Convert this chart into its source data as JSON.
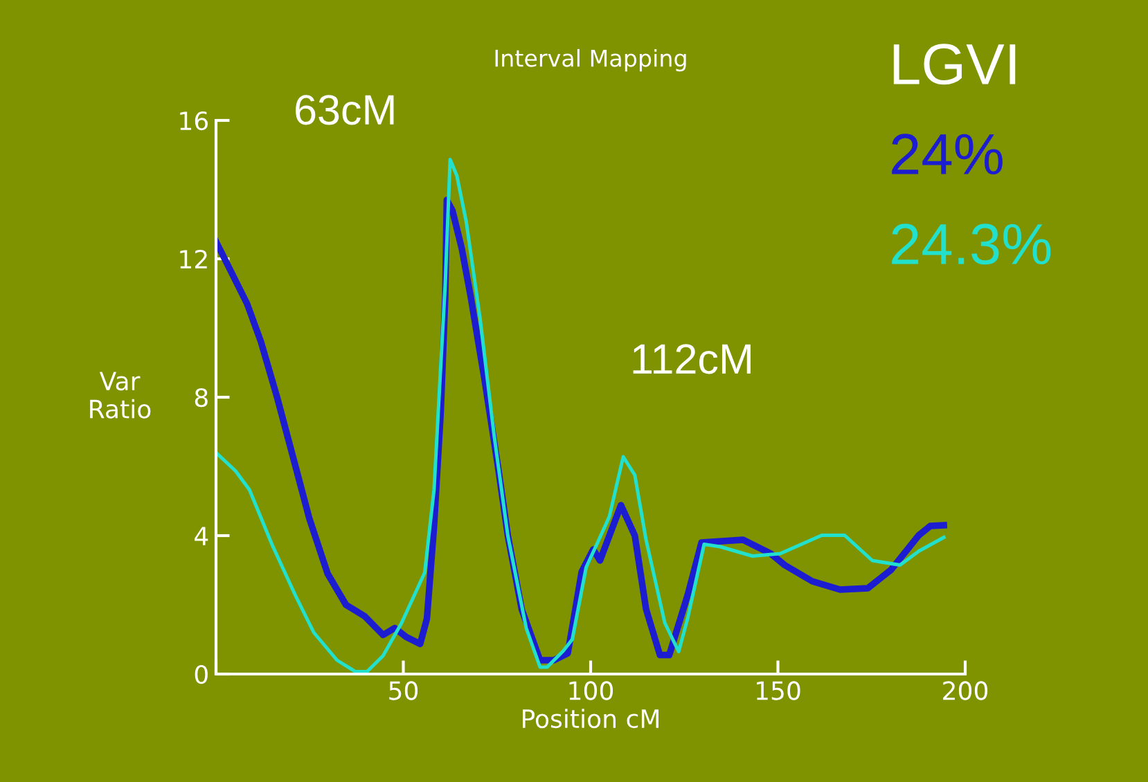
{
  "chart_data": {
    "type": "line",
    "title": "Interval Mapping",
    "xlabel": "Position cM",
    "ylabel": "Var\nRatio",
    "legend_title": "LGVI",
    "legend": "top right",
    "annotations": [
      "63cM",
      "112cM"
    ],
    "xlim": [
      0,
      200
    ],
    "xticks": [
      {
        "value": 0,
        "label": null
      },
      50,
      100,
      150,
      200
    ],
    "ylim": [
      0,
      16
    ],
    "yticks": [
      0,
      4,
      8,
      12,
      16
    ],
    "grid": false,
    "series": [
      {
        "name": "24%",
        "color": "#1c1cd0",
        "x": [
          0,
          8.3,
          12,
          16.3,
          20,
          24.9,
          29.8,
          34.7,
          39.7,
          44.6,
          47.7,
          50.8,
          54.5,
          56.3,
          58.2,
          60,
          61.2,
          61.6,
          63.1,
          65.6,
          68,
          71.7,
          75.4,
          77.9,
          81.6,
          86.5,
          90.2,
          93.9,
          95.7,
          97.6,
          100.7,
          102.5,
          108.1,
          111.8,
          114.8,
          118.5,
          121,
          125.9,
          129.6,
          140.7,
          148.1,
          151.8,
          159.2,
          166.6,
          174,
          180.2,
          187.6,
          190.7,
          194.3
        ],
        "values": [
          12.5,
          10.7,
          9.6,
          8.0,
          6.5,
          4.5,
          2.9,
          2.0,
          1.67,
          1.13,
          1.33,
          1.07,
          0.87,
          1.6,
          4.27,
          7.6,
          10.9,
          13.7,
          13.4,
          12.3,
          10.9,
          8.5,
          5.9,
          4.0,
          1.87,
          0.4,
          0.4,
          0.6,
          1.73,
          2.95,
          3.6,
          3.28,
          4.88,
          4.0,
          1.88,
          0.55,
          0.55,
          2.28,
          3.8,
          3.88,
          3.48,
          3.15,
          2.68,
          2.44,
          2.48,
          3.01,
          4.01,
          4.28,
          4.3
        ]
      },
      {
        "name": "24.3%",
        "color": "#22e0cc",
        "x": [
          0,
          5.2,
          8.9,
          15,
          21.2,
          26.1,
          32.3,
          37.2,
          40.3,
          44.6,
          49.5,
          55.7,
          58.2,
          60,
          61.2,
          62.5,
          64.3,
          66.8,
          70.5,
          74.2,
          77.9,
          82.8,
          86.5,
          88.4,
          92.7,
          95.1,
          98.8,
          101.9,
          105,
          108.7,
          111.8,
          114.8,
          119.8,
          123.5,
          125.9,
          130.3,
          134.6,
          143.2,
          150.6,
          161.7,
          167.8,
          175.2,
          182.6,
          187.6,
          194.3
        ],
        "values": [
          6.4,
          5.87,
          5.33,
          3.73,
          2.27,
          1.2,
          0.4,
          0.07,
          0.07,
          0.53,
          1.47,
          2.93,
          5.33,
          8.93,
          11.3,
          14.87,
          14.4,
          13.07,
          10.27,
          6.93,
          4.0,
          1.33,
          0.2,
          0.2,
          0.67,
          1.0,
          3.08,
          3.81,
          4.55,
          6.28,
          5.75,
          3.88,
          1.48,
          0.65,
          1.61,
          3.75,
          3.68,
          3.41,
          3.48,
          4.01,
          4.01,
          3.28,
          3.15,
          3.55,
          3.95
        ]
      }
    ]
  }
}
